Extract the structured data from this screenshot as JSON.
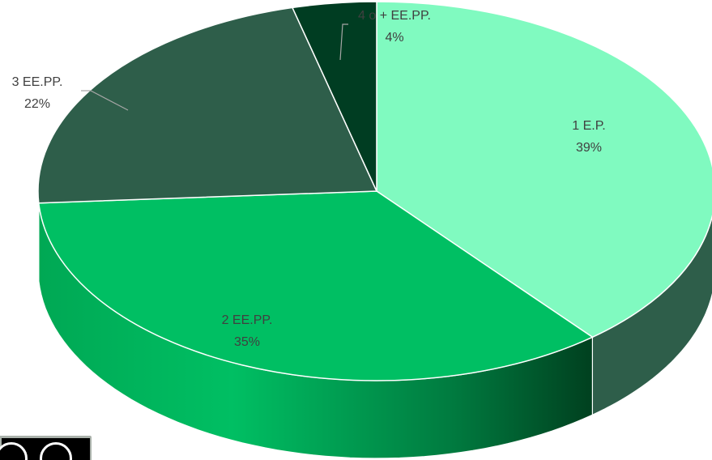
{
  "chart_data": {
    "type": "pie",
    "style": "3d",
    "categories": [
      "1 E.P.",
      "2 EE.PP.",
      "3 EE.PP.",
      "4 o + EE.PP."
    ],
    "values": [
      39,
      35,
      22,
      4
    ],
    "percent_labels": [
      "39%",
      "35%",
      "22%",
      "4%"
    ],
    "colors": [
      "#80fac0",
      "#00bf63",
      "#2e5e4a",
      "#003d22"
    ],
    "legend": "none",
    "title": ""
  },
  "license_badge": {
    "icons": [
      "creative-commons-icon",
      "attribution-icon"
    ]
  }
}
